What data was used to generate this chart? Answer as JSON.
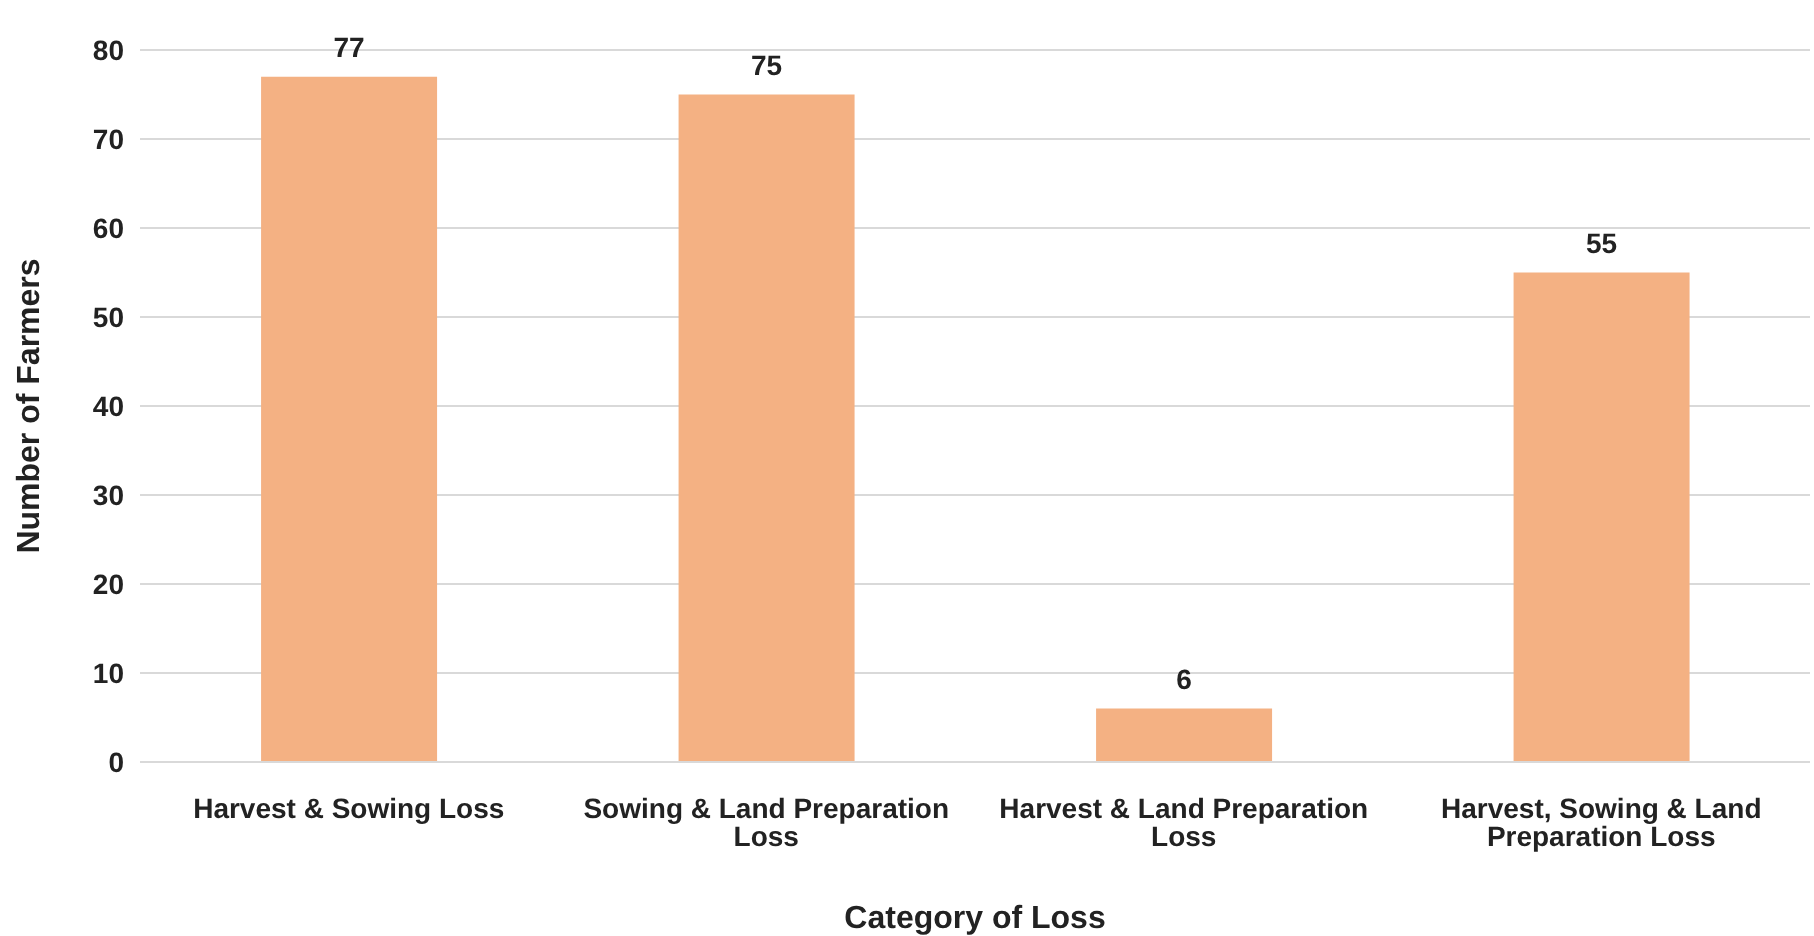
{
  "chart_data": {
    "type": "bar",
    "xlabel": "Category of Loss",
    "ylabel": "Number of Farmers",
    "categories": [
      "Harvest & Sowing Loss",
      "Sowing & Land Preparation Loss",
      "Harvest & Land Preparation Loss",
      "Harvest, Sowing & Land Preparation Loss"
    ],
    "values": [
      77,
      75,
      6,
      55
    ],
    "color": "#f4b183",
    "data_labels": true,
    "ylim": [
      0,
      80
    ],
    "yticks": [
      0,
      10,
      20,
      30,
      40,
      50,
      60,
      70,
      80
    ],
    "grid": "y"
  }
}
